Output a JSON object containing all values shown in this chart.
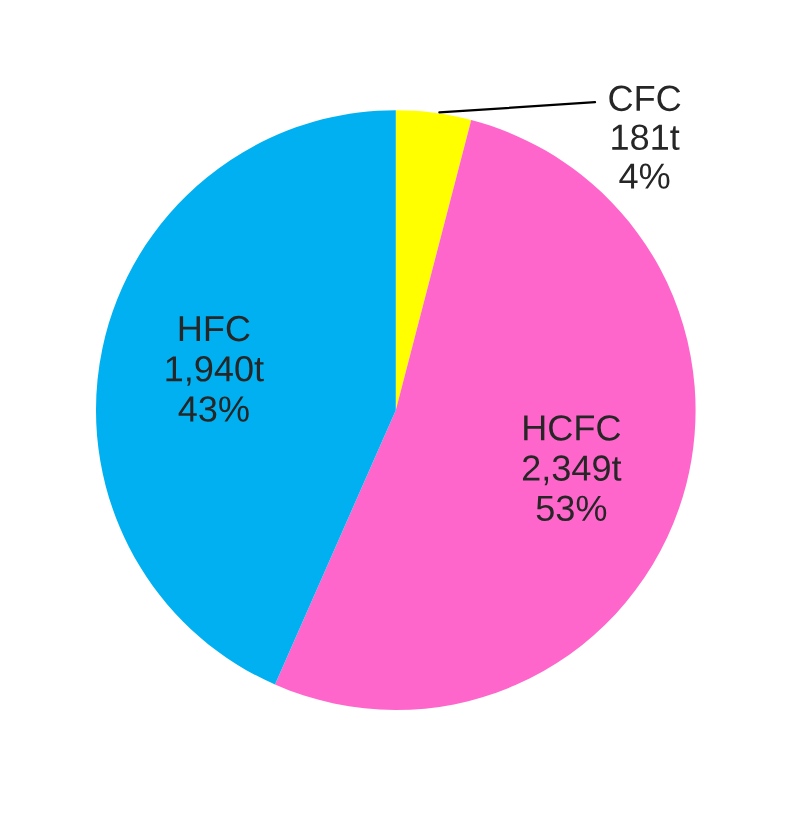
{
  "chart_data": {
    "type": "pie",
    "categories": [
      "CFC",
      "HCFC",
      "HFC"
    ],
    "values": [
      181,
      2349,
      1940
    ],
    "value_labels": [
      "181t",
      "2,349t",
      "1,940t"
    ],
    "annotations": [
      "4%",
      "53%",
      "43%"
    ],
    "colors": [
      "#ffff00",
      "#ff66cc",
      "#00b0f0"
    ]
  }
}
